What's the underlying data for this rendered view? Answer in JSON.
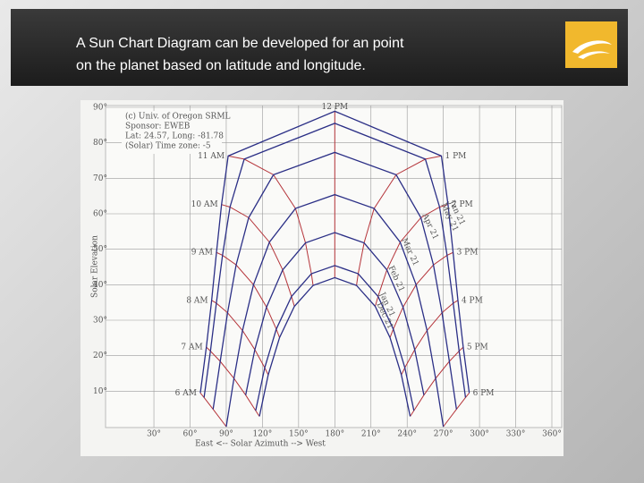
{
  "slide": {
    "title_lines": [
      "A Sun Chart Diagram can be developed for an point",
      "on the planet based on latitude and longitude."
    ]
  },
  "chart_data": {
    "type": "line",
    "x_label": "East <-- Solar Azimuth --> West",
    "y_label": "Solar Elevation",
    "notes": [
      "(c) Univ. of Oregon SRML",
      "Sponsor: EWEB",
      "Lat: 24.57, Long: -81.78",
      "(Solar) Time zone: -5"
    ],
    "xlim": [
      0,
      360
    ],
    "ylim": [
      0,
      90
    ],
    "xticks": [
      {
        "value": 30,
        "label": "30°"
      },
      {
        "value": 60,
        "label": "60°"
      },
      {
        "value": 90,
        "label": "90°"
      },
      {
        "value": 120,
        "label": "120°"
      },
      {
        "value": 150,
        "label": "150°"
      },
      {
        "value": 180,
        "label": "180°"
      },
      {
        "value": 210,
        "label": "210°"
      },
      {
        "value": 240,
        "label": "240°"
      },
      {
        "value": 270,
        "label": "270°"
      },
      {
        "value": 300,
        "label": "300°"
      },
      {
        "value": 330,
        "label": "330°"
      },
      {
        "value": 360,
        "label": "360°"
      }
    ],
    "yticks": [
      {
        "value": 10,
        "label": "10°"
      },
      {
        "value": 20,
        "label": "20°"
      },
      {
        "value": 30,
        "label": "30°"
      },
      {
        "value": 40,
        "label": "40°"
      },
      {
        "value": 50,
        "label": "50°"
      },
      {
        "value": 60,
        "label": "60°"
      },
      {
        "value": 70,
        "label": "70°"
      },
      {
        "value": 80,
        "label": "80°"
      },
      {
        "value": 90,
        "label": "90°"
      }
    ],
    "grid": true,
    "hour_color": "#b5343a",
    "hours": [
      "6 AM",
      "7 AM",
      "8 AM",
      "9 AM",
      "10 AM",
      "11 AM",
      "12 PM",
      "1 PM",
      "2 PM",
      "3 PM",
      "4 PM",
      "5 PM",
      "6 PM"
    ],
    "series": [
      {
        "name": "Jun 21",
        "color": "#2b2f86",
        "x": [
          68.5,
          73.5,
          77.9,
          81.9,
          86.1,
          91.6,
          180,
          268.4,
          273.9,
          278.1,
          282.1,
          286.5,
          291.5
        ],
        "values": [
          9.5,
          22.4,
          35.6,
          49.1,
          62.6,
          76.3,
          88.9,
          76.3,
          62.6,
          49.1,
          35.6,
          22.4,
          9.5
        ]
      },
      {
        "name": "May 21",
        "color": "#2b2f86",
        "x": [
          71.6,
          76.9,
          81.8,
          86.9,
          93.1,
          104.9,
          180,
          255.1,
          266.9,
          273.1,
          278.2,
          283.1,
          288.4
        ],
        "values": [
          8.2,
          21.3,
          34.8,
          48.3,
          61.9,
          75.4,
          85.5,
          75.4,
          61.9,
          48.3,
          34.8,
          21.3,
          8.2
        ]
      },
      {
        "name": "Apr 21",
        "color": "#2b2f86",
        "x": [
          79.1,
          85.0,
          91.1,
          98.2,
          108.6,
          129.1,
          180,
          230.9,
          251.4,
          261.8,
          268.9,
          275.0,
          280.9
        ],
        "values": [
          4.9,
          18.4,
          32.1,
          45.6,
          58.9,
          71.0,
          77.3,
          71.0,
          58.9,
          45.6,
          32.1,
          18.4,
          4.9
        ]
      },
      {
        "name": "Mar 21",
        "color": "#2b2f86",
        "x": [
          90,
          96.4,
          103.5,
          112.6,
          125.8,
          147.4,
          180,
          212.6,
          234.2,
          247.4,
          256.5,
          263.6,
          270
        ],
        "values": [
          0,
          13.6,
          27.1,
          40.0,
          52.0,
          61.5,
          65.4,
          61.5,
          52.0,
          40.0,
          27.1,
          13.6,
          0
        ]
      },
      {
        "name": "Feb 21",
        "color": "#2b2f86",
        "x": [
          null,
          106.1,
          113.7,
          123.4,
          136.8,
          155.7,
          180,
          204.3,
          223.2,
          236.6,
          246.3,
          253.9,
          null
        ],
        "values": [
          null,
          8.9,
          21.7,
          33.7,
          44.2,
          51.8,
          54.7,
          51.8,
          44.2,
          33.7,
          21.7,
          8.9,
          null
        ]
      },
      {
        "name": "Jan 21",
        "color": "#2b2f86",
        "x": [
          null,
          114.4,
          121.9,
          131.5,
          144.1,
          160.6,
          180,
          199.4,
          215.9,
          228.5,
          238.1,
          245.6,
          null
        ],
        "values": [
          null,
          4.5,
          16.6,
          27.5,
          36.7,
          43.1,
          45.4,
          43.1,
          36.7,
          27.5,
          16.6,
          4.5,
          null
        ]
      },
      {
        "name": "Dec 21",
        "color": "#2b2f86",
        "x": [
          null,
          117.5,
          124.8,
          134.2,
          146.5,
          162.0,
          180,
          198.0,
          213.5,
          225.8,
          235.2,
          242.5,
          null
        ],
        "values": [
          null,
          2.9,
          14.6,
          25.1,
          33.9,
          39.8,
          42.0,
          39.8,
          33.9,
          25.1,
          14.6,
          2.9,
          null
        ]
      }
    ]
  }
}
